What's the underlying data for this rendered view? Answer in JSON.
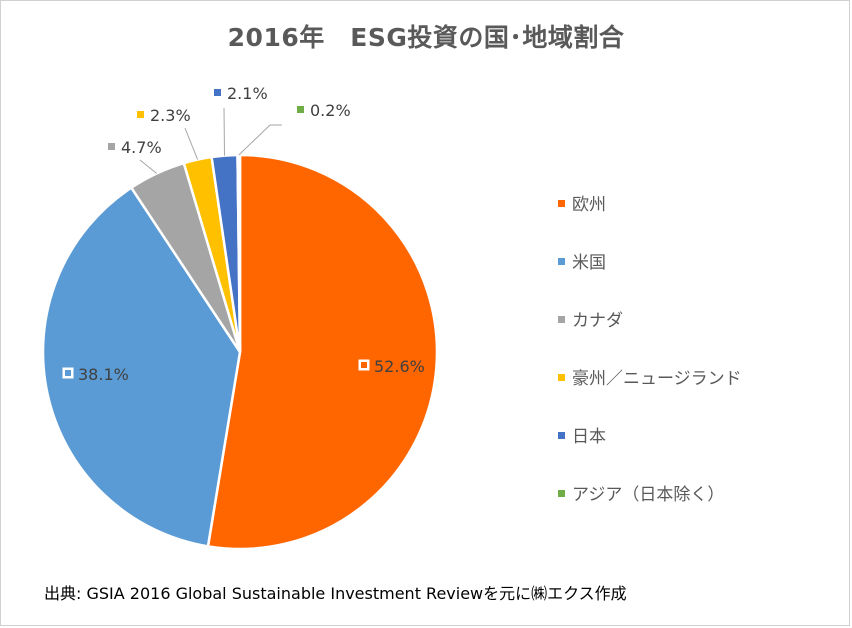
{
  "chart_data": {
    "type": "pie",
    "title": "2016年　ESG投資の国･地域割合",
    "slices": [
      {
        "label": "欧州",
        "value": 52.6,
        "value_label": "52.6%",
        "color": "#ff6600"
      },
      {
        "label": "米国",
        "value": 38.1,
        "value_label": "38.1%",
        "color": "#5b9bd5"
      },
      {
        "label": "カナダ",
        "value": 4.7,
        "value_label": "4.7%",
        "color": "#a5a5a5"
      },
      {
        "label": "豪州／ニュージランド",
        "value": 2.3,
        "value_label": "2.3%",
        "color": "#ffc000"
      },
      {
        "label": "日本",
        "value": 2.1,
        "value_label": "2.1%",
        "color": "#4472c4"
      },
      {
        "label": "アジア（日本除く）",
        "value": 0.2,
        "value_label": "0.2%",
        "color": "#70ad47"
      }
    ],
    "start_angle_deg": 0,
    "direction": "clockwise",
    "legend_position": "right",
    "source": "出典: GSIA 2016 Global Sustainable Investment Reviewを元に㈱エクス作成"
  }
}
